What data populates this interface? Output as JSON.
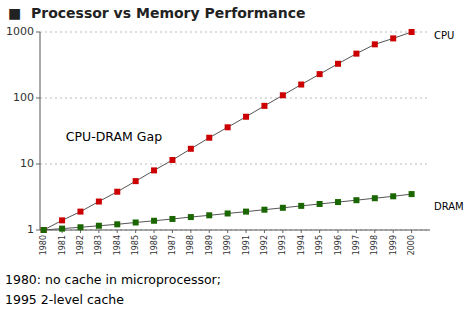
{
  "chart_data": {
    "type": "line",
    "title": "■  Processor vs Memory Performance",
    "x": [
      1980,
      1981,
      1982,
      1983,
      1984,
      1985,
      1986,
      1987,
      1988,
      1989,
      1990,
      1991,
      1992,
      1993,
      1994,
      1995,
      1996,
      1997,
      1998,
      1999,
      2000
    ],
    "series": [
      {
        "name": "CPU",
        "color": "#cc0000",
        "marker": "square",
        "line_style": "solid",
        "values": [
          1,
          1.4,
          1.9,
          2.7,
          3.8,
          5.5,
          8.0,
          11.5,
          17.0,
          25.0,
          36.0,
          52.0,
          76.0,
          110.0,
          160.0,
          230.0,
          330.0,
          470.0,
          650.0,
          800.0,
          1000.0
        ]
      },
      {
        "name": "DRAM",
        "color": "#1a6600",
        "marker": "square",
        "line_style": "solid",
        "values": [
          1,
          1.05,
          1.1,
          1.16,
          1.22,
          1.3,
          1.38,
          1.47,
          1.57,
          1.67,
          1.78,
          1.9,
          2.03,
          2.17,
          2.32,
          2.48,
          2.65,
          2.83,
          3.03,
          3.24,
          3.5
        ]
      }
    ],
    "xlim": [
      1979.8,
      2001.0
    ],
    "xticks": [
      1980,
      1981,
      1982,
      1983,
      1984,
      1985,
      1986,
      1987,
      1988,
      1989,
      1990,
      1991,
      1992,
      1993,
      1994,
      1995,
      1996,
      1997,
      1998,
      1999,
      2000
    ],
    "ylim": [
      1,
      1000
    ],
    "yticks": [
      1,
      10,
      100,
      1000
    ],
    "log": "y",
    "grid": true,
    "annotations": [
      {
        "text": "CPU-DRAM Gap",
        "x": 1981.2,
        "y": 25
      }
    ],
    "footnotes": [
      "1980: no cache in microprocessor;",
      "1995 2-level cache"
    ]
  }
}
